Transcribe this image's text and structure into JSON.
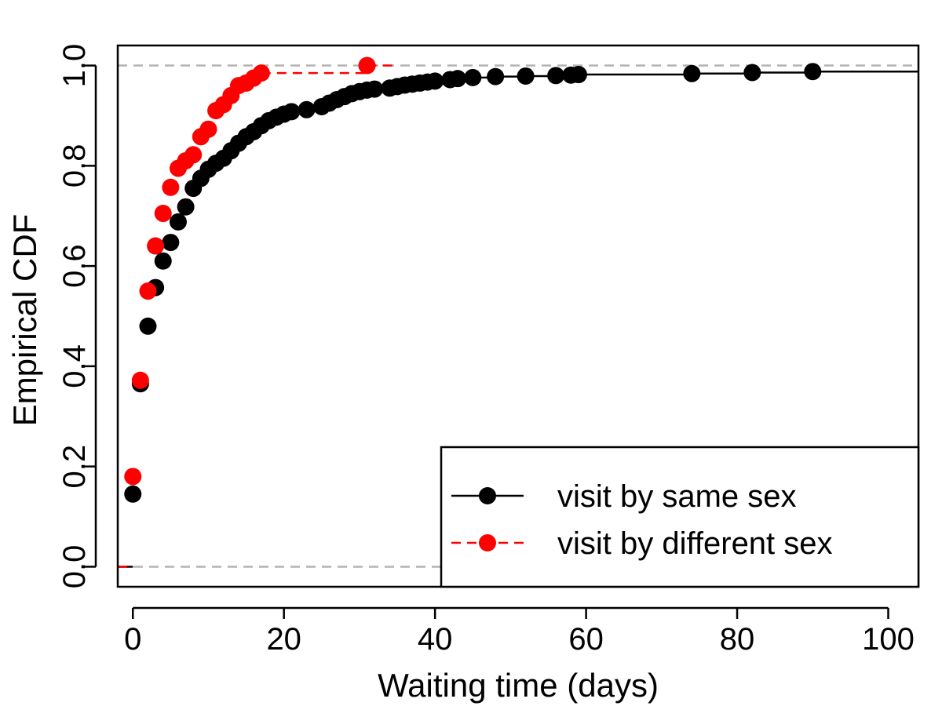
{
  "chart_data": {
    "type": "scatter",
    "title": "",
    "xlabel": "Waiting time (days)",
    "ylabel": "Empirical CDF",
    "xlim": [
      -2,
      104
    ],
    "ylim": [
      -0.04,
      1.04
    ],
    "xticks": [
      "0",
      "20",
      "40",
      "60",
      "80",
      "100"
    ],
    "yticks": [
      "0.0",
      "0.2",
      "0.4",
      "0.6",
      "0.8",
      "1.0"
    ],
    "reference_lines": [
      0,
      1
    ],
    "legend_position": "bottom-right",
    "series": [
      {
        "name": "visit by same sex",
        "color": "#000000",
        "line_style": "solid",
        "x": [
          0,
          1,
          2,
          3,
          4,
          5,
          6,
          7,
          8,
          9,
          10,
          11,
          12,
          13,
          14,
          15,
          16,
          17,
          18,
          19,
          20,
          21,
          23,
          25,
          26,
          27,
          28,
          29,
          30,
          31,
          32,
          34,
          35,
          36,
          37,
          38,
          39,
          40,
          42,
          43,
          45,
          48,
          52,
          56,
          58,
          59,
          74,
          82,
          90
        ],
        "y": [
          0.145,
          0.365,
          0.48,
          0.557,
          0.61,
          0.647,
          0.688,
          0.718,
          0.755,
          0.775,
          0.793,
          0.805,
          0.815,
          0.83,
          0.845,
          0.858,
          0.868,
          0.88,
          0.89,
          0.897,
          0.903,
          0.908,
          0.912,
          0.918,
          0.925,
          0.932,
          0.938,
          0.944,
          0.948,
          0.951,
          0.953,
          0.955,
          0.958,
          0.961,
          0.963,
          0.965,
          0.967,
          0.969,
          0.972,
          0.974,
          0.976,
          0.978,
          0.979,
          0.98,
          0.981,
          0.982,
          0.984,
          0.986,
          0.988
        ]
      },
      {
        "name": "visit by different sex",
        "color": "#ff0000",
        "line_style": "dashed",
        "x": [
          0,
          1,
          2,
          3,
          4,
          5,
          6,
          7,
          8,
          9,
          10,
          11,
          12,
          13,
          14,
          15,
          16,
          17,
          31
        ],
        "y": [
          0.18,
          0.372,
          0.55,
          0.64,
          0.705,
          0.757,
          0.795,
          0.81,
          0.822,
          0.858,
          0.873,
          0.91,
          0.922,
          0.94,
          0.96,
          0.965,
          0.975,
          0.985,
          1.0
        ]
      }
    ]
  }
}
